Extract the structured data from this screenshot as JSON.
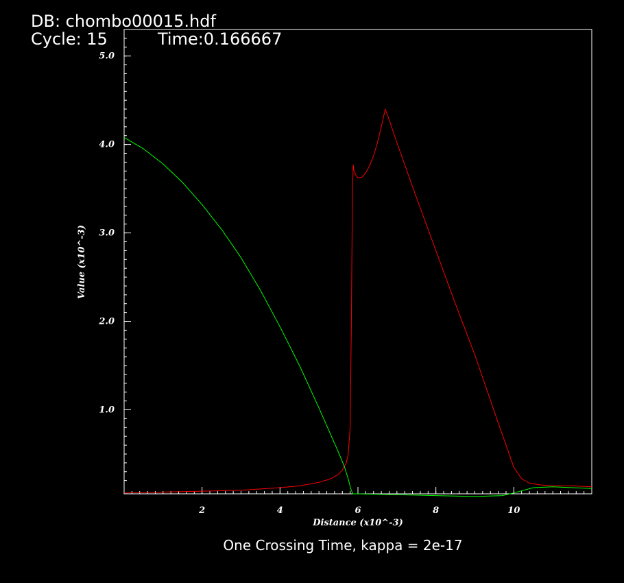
{
  "header": {
    "db": "DB: chombo00015.hdf",
    "cycle": "Cycle: 15",
    "time": "Time:0.166667"
  },
  "caption": "One Crossing Time, kappa = 2e-17",
  "colors": {
    "background": "#000000",
    "axes": "#ffffff",
    "red_series": "#ff0000",
    "green_series": "#00ff00"
  },
  "chart_data": {
    "type": "line",
    "xlabel": "Distance (x10^-3)",
    "ylabel": "Value (x10^-3)",
    "xlim": [
      0,
      12
    ],
    "ylim": [
      0.05,
      5.3
    ],
    "xticks": [
      2,
      4,
      6,
      8,
      10
    ],
    "xtick_labels": [
      "2",
      "4",
      "6",
      "8",
      "10"
    ],
    "yticks": [
      1.0,
      2.0,
      3.0,
      4.0,
      5.0
    ],
    "ytick_labels": [
      "1.0",
      "2.0",
      "3.0",
      "4.0",
      "5.0"
    ],
    "grid": false,
    "series": [
      {
        "color": "#ff0000",
        "x": [
          0,
          1,
          2,
          3,
          4,
          4.5,
          5,
          5.3,
          5.5,
          5.6,
          5.7,
          5.75,
          5.8,
          5.83,
          5.86,
          5.88,
          5.9,
          5.95,
          6.0,
          6.1,
          6.2,
          6.3,
          6.4,
          6.5,
          6.6,
          6.7,
          6.8,
          7.0,
          7.5,
          8.0,
          8.5,
          9.0,
          9.5,
          9.8,
          10.0,
          10.2,
          10.4,
          10.7,
          11,
          11.5,
          12
        ],
        "y": [
          0.06,
          0.07,
          0.08,
          0.09,
          0.12,
          0.14,
          0.18,
          0.22,
          0.27,
          0.32,
          0.4,
          0.5,
          0.8,
          1.9,
          3.5,
          3.77,
          3.7,
          3.65,
          3.62,
          3.63,
          3.68,
          3.76,
          3.87,
          4.02,
          4.2,
          4.4,
          4.28,
          4.02,
          3.4,
          2.8,
          2.2,
          1.62,
          0.98,
          0.6,
          0.35,
          0.22,
          0.17,
          0.15,
          0.14,
          0.14,
          0.13
        ]
      },
      {
        "color": "#00ff00",
        "x": [
          0,
          0.5,
          1,
          1.5,
          2,
          2.5,
          3,
          3.5,
          4,
          4.5,
          5,
          5.3,
          5.5,
          5.65,
          5.75,
          5.82,
          5.87,
          6.0,
          7.0,
          8.0,
          9.0,
          9.7,
          10.0,
          10.5,
          11.0,
          11.5,
          12
        ],
        "y": [
          4.08,
          3.95,
          3.78,
          3.57,
          3.32,
          3.04,
          2.72,
          2.35,
          1.94,
          1.5,
          1.02,
          0.72,
          0.52,
          0.36,
          0.22,
          0.1,
          0.05,
          0.05,
          0.04,
          0.03,
          0.02,
          0.03,
          0.06,
          0.12,
          0.13,
          0.12,
          0.11
        ]
      }
    ]
  }
}
